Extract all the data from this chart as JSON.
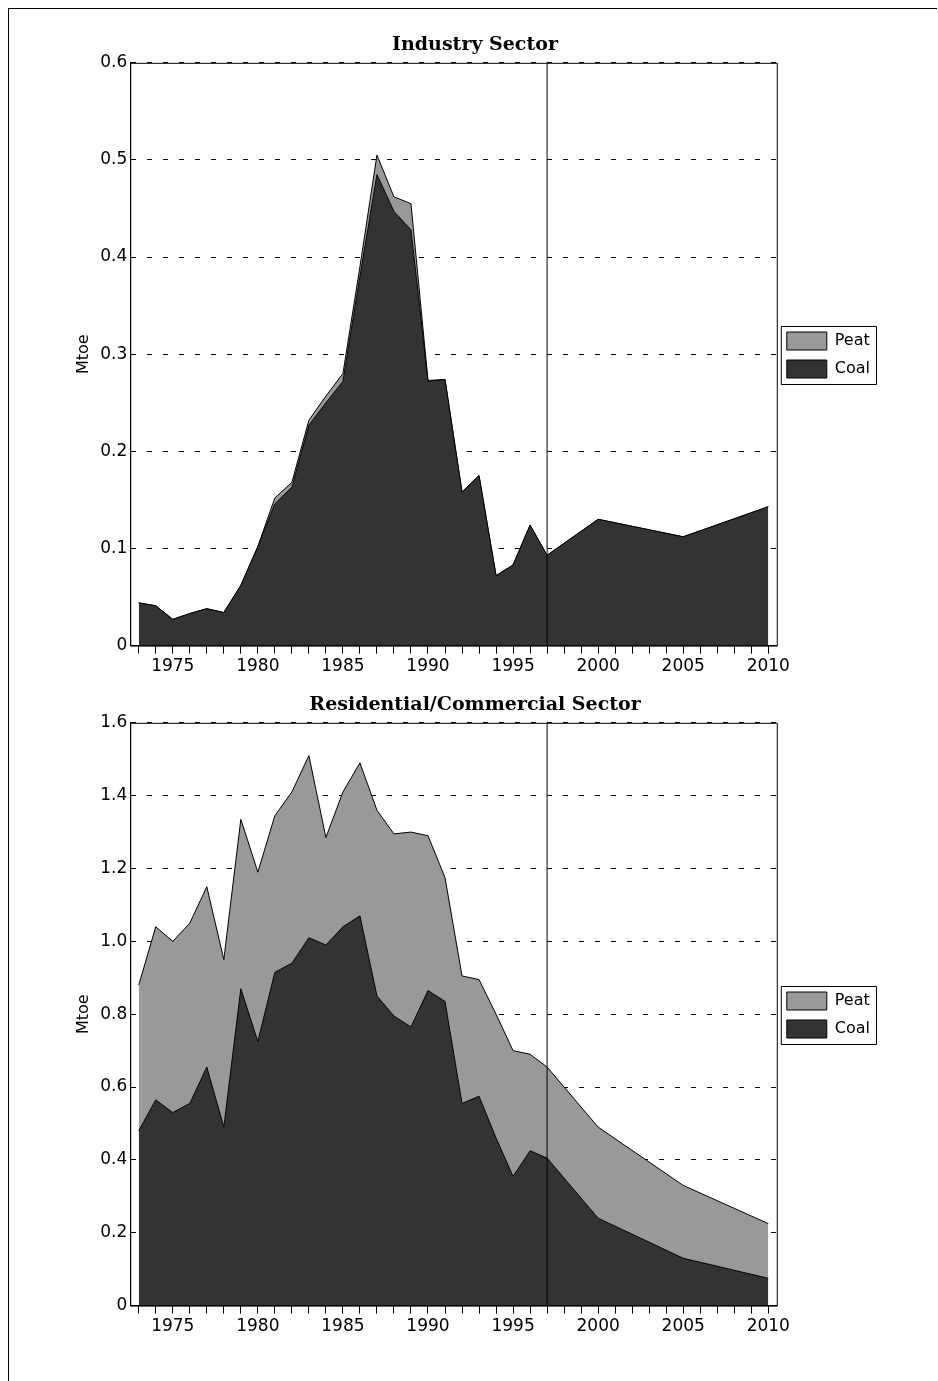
{
  "chart_data": [
    {
      "type": "area",
      "title": "Industry Sector",
      "ylabel": "Mtoe",
      "stacked": true,
      "legend": "right",
      "grid": "y",
      "x": [
        1973,
        1974,
        1975,
        1976,
        1977,
        1978,
        1979,
        1980,
        1981,
        1982,
        1983,
        1984,
        1985,
        1986,
        1987,
        1988,
        1989,
        1990,
        1991,
        1992,
        1993,
        1994,
        1995,
        1996,
        1997,
        2000,
        2005,
        2010
      ],
      "series": [
        {
          "name": "Coal",
          "color": "#333333",
          "values": [
            0.044,
            0.041,
            0.027,
            0.033,
            0.038,
            0.034,
            0.062,
            0.102,
            0.146,
            0.163,
            0.227,
            0.25,
            0.272,
            0.38,
            0.485,
            0.447,
            0.428,
            0.272,
            0.274,
            0.158,
            0.175,
            0.072,
            0.083,
            0.124,
            0.093,
            0.13,
            0.112,
            0.143
          ]
        },
        {
          "name": "Peat",
          "color": "#999999",
          "values": [
            0,
            0,
            0,
            0,
            0,
            0,
            0,
            0,
            0.006,
            0.005,
            0.005,
            0.007,
            0.008,
            0.01,
            0.02,
            0.015,
            0.027,
            0.001,
            0,
            0,
            0,
            0,
            0,
            0,
            0,
            0,
            0,
            0
          ]
        }
      ],
      "xlim": [
        1972.5,
        2010.5
      ],
      "xticks": [
        {
          "value": 1973,
          "label": null
        },
        {
          "value": 1974,
          "label": null
        },
        1975,
        {
          "value": 1976,
          "label": null
        },
        {
          "value": 1977,
          "label": null
        },
        {
          "value": 1978,
          "label": null
        },
        {
          "value": 1979,
          "label": null
        },
        1980,
        {
          "value": 1981,
          "label": null
        },
        {
          "value": 1982,
          "label": null
        },
        {
          "value": 1983,
          "label": null
        },
        {
          "value": 1984,
          "label": null
        },
        1985,
        {
          "value": 1986,
          "label": null
        },
        {
          "value": 1987,
          "label": null
        },
        {
          "value": 1988,
          "label": null
        },
        {
          "value": 1989,
          "label": null
        },
        1990,
        {
          "value": 1991,
          "label": null
        },
        {
          "value": 1992,
          "label": null
        },
        {
          "value": 1993,
          "label": null
        },
        {
          "value": 1994,
          "label": null
        },
        1995,
        {
          "value": 1996,
          "label": null
        },
        {
          "value": 1997,
          "label": null
        },
        {
          "value": 1998,
          "label": null
        },
        {
          "value": 1999,
          "label": null
        },
        2000,
        {
          "value": 2001,
          "label": null
        },
        {
          "value": 2002,
          "label": null
        },
        {
          "value": 2003,
          "label": null
        },
        {
          "value": 2004,
          "label": null
        },
        2005,
        {
          "value": 2006,
          "label": null
        },
        {
          "value": 2007,
          "label": null
        },
        {
          "value": 2008,
          "label": null
        },
        {
          "value": 2009,
          "label": null
        },
        2010
      ],
      "ylim": [
        0,
        0.6
      ],
      "yticks": [
        0,
        0.1,
        0.2,
        0.3,
        0.4,
        0.5,
        0.6
      ],
      "ref_lines": [
        {
          "axis": "x",
          "value": 1997,
          "color": "#000000"
        }
      ]
    },
    {
      "type": "area",
      "title": "Residential/Commercial Sector",
      "ylabel": "Mtoe",
      "stacked": true,
      "legend": "right",
      "grid": "y",
      "x": [
        1973,
        1974,
        1975,
        1976,
        1977,
        1978,
        1979,
        1980,
        1981,
        1982,
        1983,
        1984,
        1985,
        1986,
        1987,
        1988,
        1989,
        1990,
        1991,
        1992,
        1993,
        1994,
        1995,
        1996,
        1997,
        2000,
        2005,
        2010
      ],
      "series": [
        {
          "name": "Coal",
          "color": "#333333",
          "values": [
            0.48,
            0.565,
            0.53,
            0.555,
            0.655,
            0.49,
            0.87,
            0.725,
            0.915,
            0.94,
            1.01,
            0.99,
            1.04,
            1.07,
            0.85,
            0.795,
            0.765,
            0.865,
            0.835,
            0.555,
            0.575,
            0.46,
            0.355,
            0.425,
            0.405,
            0.24,
            0.13,
            0.075
          ]
        },
        {
          "name": "Peat",
          "color": "#999999",
          "values": [
            0.4,
            0.475,
            0.47,
            0.495,
            0.495,
            0.46,
            0.465,
            0.465,
            0.43,
            0.47,
            0.5,
            0.295,
            0.37,
            0.42,
            0.51,
            0.5,
            0.535,
            0.425,
            0.34,
            0.35,
            0.32,
            0.34,
            0.345,
            0.265,
            0.25,
            0.25,
            0.2,
            0.15
          ]
        }
      ],
      "xlim": [
        1972.5,
        2010.5
      ],
      "xticks": [
        {
          "value": 1973,
          "label": null
        },
        {
          "value": 1974,
          "label": null
        },
        1975,
        {
          "value": 1976,
          "label": null
        },
        {
          "value": 1977,
          "label": null
        },
        {
          "value": 1978,
          "label": null
        },
        {
          "value": 1979,
          "label": null
        },
        1980,
        {
          "value": 1981,
          "label": null
        },
        {
          "value": 1982,
          "label": null
        },
        {
          "value": 1983,
          "label": null
        },
        {
          "value": 1984,
          "label": null
        },
        1985,
        {
          "value": 1986,
          "label": null
        },
        {
          "value": 1987,
          "label": null
        },
        {
          "value": 1988,
          "label": null
        },
        {
          "value": 1989,
          "label": null
        },
        1990,
        {
          "value": 1991,
          "label": null
        },
        {
          "value": 1992,
          "label": null
        },
        {
          "value": 1993,
          "label": null
        },
        {
          "value": 1994,
          "label": null
        },
        1995,
        {
          "value": 1996,
          "label": null
        },
        {
          "value": 1997,
          "label": null
        },
        {
          "value": 1998,
          "label": null
        },
        {
          "value": 1999,
          "label": null
        },
        2000,
        {
          "value": 2001,
          "label": null
        },
        {
          "value": 2002,
          "label": null
        },
        {
          "value": 2003,
          "label": null
        },
        {
          "value": 2004,
          "label": null
        },
        2005,
        {
          "value": 2006,
          "label": null
        },
        {
          "value": 2007,
          "label": null
        },
        {
          "value": 2008,
          "label": null
        },
        {
          "value": 2009,
          "label": null
        },
        2010
      ],
      "ylim": [
        0,
        1.6
      ],
      "yticks": [
        0,
        0.2,
        0.4,
        0.6,
        0.8,
        {
          "value": 1,
          "label": "1.0"
        },
        1.2,
        1.4,
        1.6
      ],
      "ref_lines": [
        {
          "axis": "x",
          "value": 1997,
          "color": "#000000"
        }
      ]
    }
  ]
}
